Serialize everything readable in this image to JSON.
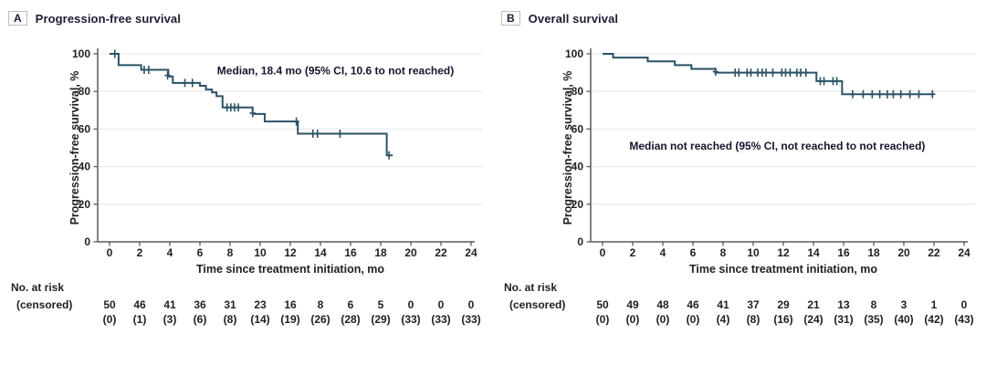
{
  "colors": {
    "curve": "#2b5266",
    "grid": "#e9ebed",
    "axis": "#595a5c",
    "text": "#1f1f1f",
    "title": "#1c1c33"
  },
  "figure": {
    "panels": [
      {
        "letter": "A",
        "title": "Progression-free survival"
      },
      {
        "letter": "B",
        "title": "Overall survival"
      }
    ]
  },
  "chart_data": [
    {
      "type": "line",
      "subtype": "kaplan-meier-step",
      "panel": "A",
      "title": "Progression-free survival",
      "annotation": "Median, 18.4 mo (95% CI, 10.6 to not reached)",
      "annotation_pos": {
        "x_mo": 15.0,
        "y_pct": 89
      },
      "xlabel": "Time since treatment initiation, mo",
      "ylabel": "Progression-free survival, %",
      "xlim": [
        0,
        24
      ],
      "ylim": [
        0,
        100
      ],
      "xticks": [
        0,
        2,
        4,
        6,
        8,
        10,
        12,
        14,
        16,
        18,
        20,
        22,
        24
      ],
      "yticks": [
        0,
        20,
        40,
        60,
        80,
        100
      ],
      "grid": true,
      "steps": [
        [
          0,
          100
        ],
        [
          0.6,
          94
        ],
        [
          2.1,
          91.5
        ],
        [
          3.9,
          88
        ],
        [
          4.2,
          84.5
        ],
        [
          6.0,
          83
        ],
        [
          6.4,
          81
        ],
        [
          6.8,
          79.5
        ],
        [
          7.1,
          77.5
        ],
        [
          7.5,
          71.5
        ],
        [
          9.5,
          68
        ],
        [
          10.3,
          64
        ],
        [
          12.5,
          57.5
        ],
        [
          18.4,
          46
        ]
      ],
      "curve_end_mo": 18.8,
      "censor_marks": [
        [
          0.35,
          100
        ],
        [
          2.3,
          91.5
        ],
        [
          2.6,
          91.5
        ],
        [
          3.85,
          88.5
        ],
        [
          5.0,
          84.5
        ],
        [
          5.5,
          84.5
        ],
        [
          7.8,
          71.5
        ],
        [
          8.05,
          71.5
        ],
        [
          8.3,
          71.5
        ],
        [
          8.55,
          71.5
        ],
        [
          9.5,
          68.5
        ],
        [
          12.4,
          64
        ],
        [
          13.5,
          57.5
        ],
        [
          13.8,
          57.5
        ],
        [
          15.3,
          57.5
        ],
        [
          18.55,
          46
        ]
      ],
      "at_risk": {
        "row1_label": "No. at risk",
        "row2_label": "(censored)",
        "times": [
          0,
          2,
          4,
          6,
          8,
          10,
          12,
          14,
          16,
          18,
          20,
          22,
          24
        ],
        "n": [
          "50",
          "46",
          "41",
          "36",
          "31",
          "23",
          "16",
          "8",
          "6",
          "5",
          "0",
          "0",
          "0"
        ],
        "censored": [
          "(0)",
          "(1)",
          "(3)",
          "(6)",
          "(8)",
          "(14)",
          "(19)",
          "(26)",
          "(28)",
          "(29)",
          "(33)",
          "(33)",
          "(33)"
        ]
      }
    },
    {
      "type": "line",
      "subtype": "kaplan-meier-step",
      "panel": "B",
      "title": "Overall survival",
      "annotation": "Median not reached (95% CI, not reached to not reached)",
      "annotation_pos": {
        "x_mo": 11.6,
        "y_pct": 49
      },
      "xlabel": "Time since treatment initiation, mo",
      "ylabel": "Progression-free survival, %",
      "xlim": [
        0,
        24
      ],
      "ylim": [
        0,
        100
      ],
      "xticks": [
        0,
        2,
        4,
        6,
        8,
        10,
        12,
        14,
        16,
        18,
        20,
        22,
        24
      ],
      "yticks": [
        0,
        20,
        40,
        60,
        80,
        100
      ],
      "grid": true,
      "steps": [
        [
          0,
          100
        ],
        [
          0.7,
          98
        ],
        [
          3.0,
          96
        ],
        [
          4.8,
          94
        ],
        [
          5.9,
          92
        ],
        [
          7.5,
          90
        ],
        [
          14.2,
          85.5
        ],
        [
          15.9,
          78.5
        ]
      ],
      "curve_end_mo": 22.0,
      "censor_marks": [
        [
          7.5,
          90.5
        ],
        [
          8.8,
          90
        ],
        [
          9.05,
          90
        ],
        [
          9.6,
          90
        ],
        [
          9.85,
          90
        ],
        [
          10.3,
          90
        ],
        [
          10.6,
          90
        ],
        [
          10.85,
          90
        ],
        [
          11.3,
          90
        ],
        [
          11.9,
          90
        ],
        [
          12.15,
          90
        ],
        [
          12.45,
          90
        ],
        [
          12.9,
          90
        ],
        [
          13.15,
          90
        ],
        [
          13.5,
          90
        ],
        [
          14.45,
          85.5
        ],
        [
          14.7,
          85.5
        ],
        [
          15.3,
          85.5
        ],
        [
          15.55,
          85.5
        ],
        [
          16.6,
          78.5
        ],
        [
          17.3,
          78.5
        ],
        [
          17.9,
          78.5
        ],
        [
          18.4,
          78.5
        ],
        [
          18.9,
          78.5
        ],
        [
          19.3,
          78.5
        ],
        [
          19.8,
          78.5
        ],
        [
          20.4,
          78.5
        ],
        [
          21.0,
          78.5
        ],
        [
          21.9,
          78.5
        ]
      ],
      "at_risk": {
        "row1_label": "No. at risk",
        "row2_label": "(censored)",
        "times": [
          0,
          2,
          4,
          6,
          8,
          10,
          12,
          14,
          16,
          18,
          20,
          22,
          24
        ],
        "n": [
          "50",
          "49",
          "48",
          "46",
          "41",
          "37",
          "29",
          "21",
          "13",
          "8",
          "3",
          "1",
          "0"
        ],
        "censored": [
          "(0)",
          "(0)",
          "(0)",
          "(0)",
          "(4)",
          "(8)",
          "(16)",
          "(24)",
          "(31)",
          "(35)",
          "(40)",
          "(42)",
          "(43)"
        ]
      }
    }
  ]
}
